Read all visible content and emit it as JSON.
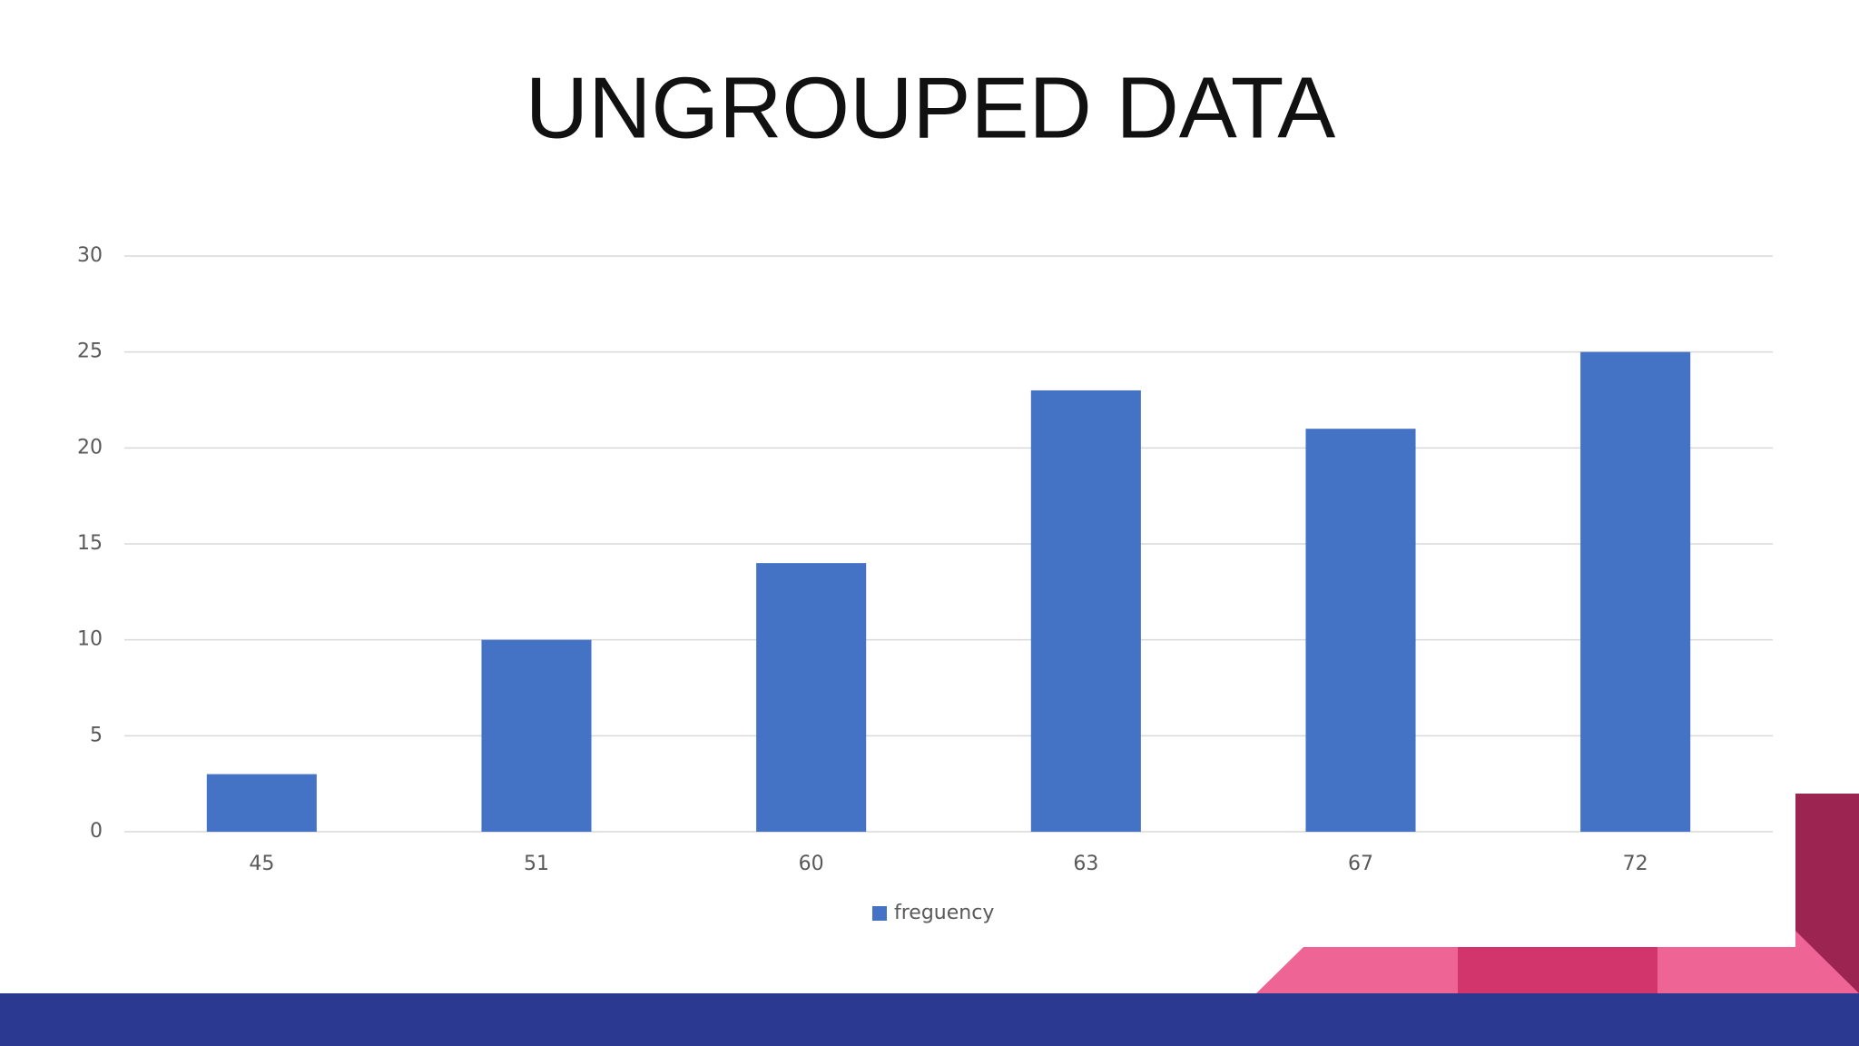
{
  "chart_data": {
    "type": "bar",
    "title": "UNGROUPED DATA",
    "categories": [
      "45",
      "51",
      "60",
      "63",
      "67",
      "72"
    ],
    "series": [
      {
        "name": "freguency",
        "color": "#4472c4",
        "values": [
          3,
          10,
          14,
          23,
          21,
          25
        ]
      }
    ],
    "ylim": [
      0,
      30
    ],
    "yticks": [
      0,
      5,
      10,
      15,
      20,
      25,
      30
    ],
    "grid": true,
    "legend": "bottom"
  }
}
